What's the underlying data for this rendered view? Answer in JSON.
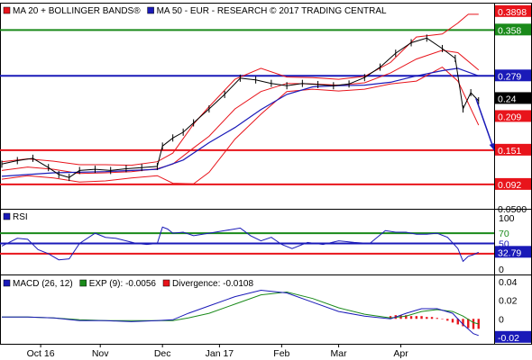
{
  "chart_data": [
    {
      "type": "line",
      "panel": "price",
      "legend": [
        {
          "label": "MA 20 + BOLLINGER BANDS®",
          "color": "#e8141b"
        },
        {
          "label": "MA 50 - EUR - RESEARCH © 2017 TRADING CENTRAL",
          "color": "#1a1ab8"
        }
      ],
      "ylim": [
        0.05,
        0.405
      ],
      "y_ticks": [
        "0.0500"
      ],
      "levels": [
        {
          "value": 0.358,
          "label": "0.358",
          "color": "#1a8a1a"
        },
        {
          "value": 0.279,
          "label": "0.279",
          "color": "#1a1ab8"
        },
        {
          "value": 0.151,
          "label": "0.151",
          "color": "#e8141b"
        },
        {
          "value": 0.092,
          "label": "0.092",
          "color": "#e8141b"
        }
      ],
      "price_tags": [
        {
          "value": 0.3898,
          "label": "0.3898",
          "color": "#e8141b"
        },
        {
          "value": 0.24,
          "label": "0.24",
          "color": "#000000"
        },
        {
          "value": 0.209,
          "label": "0.209",
          "color": "#e8141b"
        }
      ],
      "forecast_arrow": {
        "from": [
          183,
          0.24
        ],
        "to": [
          190,
          0.151
        ]
      },
      "price": {
        "name": "Price",
        "x": [
          0,
          6,
          12,
          18,
          22,
          26,
          30,
          36,
          42,
          48,
          54,
          60,
          62,
          66,
          70,
          74,
          80,
          86,
          92,
          98,
          104,
          110,
          116,
          122,
          128,
          134,
          140,
          146,
          152,
          158,
          164,
          170,
          175,
          178,
          181,
          184
        ],
        "y": [
          0.127,
          0.133,
          0.137,
          0.121,
          0.109,
          0.104,
          0.116,
          0.118,
          0.116,
          0.119,
          0.121,
          0.123,
          0.158,
          0.172,
          0.182,
          0.198,
          0.222,
          0.247,
          0.275,
          0.272,
          0.266,
          0.262,
          0.266,
          0.264,
          0.262,
          0.265,
          0.276,
          0.294,
          0.318,
          0.336,
          0.344,
          0.326,
          0.309,
          0.222,
          0.25,
          0.236
        ]
      },
      "ma20": {
        "name": "MA 20",
        "x": [
          0,
          10,
          20,
          30,
          40,
          50,
          60,
          66,
          74,
          80,
          90,
          100,
          110,
          120,
          130,
          140,
          150,
          160,
          170,
          176,
          184
        ],
        "y": [
          0.116,
          0.122,
          0.118,
          0.111,
          0.112,
          0.114,
          0.119,
          0.127,
          0.155,
          0.175,
          0.222,
          0.252,
          0.266,
          0.265,
          0.263,
          0.267,
          0.284,
          0.308,
          0.323,
          0.319,
          0.289
        ]
      },
      "bb_upper": {
        "name": "Upper band",
        "x": [
          0,
          10,
          20,
          30,
          40,
          50,
          60,
          66,
          74,
          80,
          90,
          100,
          110,
          120,
          130,
          140,
          150,
          160,
          170,
          176,
          180,
          184
        ],
        "y": [
          0.131,
          0.136,
          0.132,
          0.126,
          0.126,
          0.125,
          0.131,
          0.146,
          0.196,
          0.226,
          0.273,
          0.292,
          0.277,
          0.276,
          0.273,
          0.278,
          0.302,
          0.346,
          0.351,
          0.37,
          0.385,
          0.385
        ]
      },
      "bb_lower": {
        "name": "Lower band",
        "x": [
          0,
          10,
          20,
          30,
          40,
          50,
          60,
          66,
          74,
          80,
          90,
          100,
          110,
          120,
          130,
          140,
          150,
          160,
          170,
          176,
          184
        ],
        "y": [
          0.101,
          0.107,
          0.103,
          0.096,
          0.098,
          0.103,
          0.107,
          0.094,
          0.093,
          0.113,
          0.17,
          0.213,
          0.252,
          0.256,
          0.253,
          0.256,
          0.265,
          0.27,
          0.294,
          0.27,
          0.194
        ]
      },
      "ma50": {
        "name": "MA 50",
        "x": [
          0,
          20,
          40,
          60,
          70,
          80,
          90,
          100,
          110,
          120,
          130,
          140,
          150,
          160,
          170,
          176,
          184
        ],
        "y": [
          0.106,
          0.112,
          0.114,
          0.118,
          0.134,
          0.164,
          0.19,
          0.221,
          0.247,
          0.26,
          0.262,
          0.263,
          0.268,
          0.279,
          0.288,
          0.292,
          0.279
        ]
      }
    },
    {
      "type": "line",
      "panel": "rsi",
      "legend": [
        {
          "label": "RSI",
          "color": "#1a1ab8"
        }
      ],
      "ylim": [
        0,
        100
      ],
      "y_ticks": [
        "100",
        "70",
        "50",
        "30",
        "0"
      ],
      "levels": [
        {
          "value": 70,
          "label": "70",
          "color": "#1a8a1a"
        },
        {
          "value": 50,
          "label": "50",
          "color": "#1a1ab8"
        },
        {
          "value": 30,
          "label": "30",
          "color": "#e8141b"
        }
      ],
      "current": {
        "value": 32.79,
        "label": "32.79"
      },
      "series": [
        {
          "name": "RSI",
          "x": [
            0,
            6,
            10,
            14,
            18,
            22,
            26,
            30,
            36,
            40,
            44,
            48,
            52,
            56,
            60,
            62,
            64,
            66,
            70,
            74,
            80,
            86,
            92,
            96,
            100,
            104,
            108,
            112,
            118,
            124,
            130,
            136,
            142,
            148,
            152,
            156,
            160,
            164,
            168,
            172,
            176,
            178,
            180,
            182,
            184
          ],
          "y": [
            45,
            60,
            58,
            38,
            30,
            18,
            20,
            50,
            70,
            62,
            60,
            55,
            50,
            48,
            50,
            82,
            78,
            70,
            72,
            65,
            70,
            75,
            80,
            65,
            55,
            62,
            48,
            40,
            52,
            48,
            55,
            52,
            50,
            75,
            72,
            72,
            68,
            68,
            70,
            62,
            40,
            15,
            25,
            28,
            32.79
          ]
        }
      ]
    },
    {
      "type": "line",
      "panel": "macd",
      "legend": [
        {
          "label": "MACD (26, 12)",
          "color": "#1a1ab8"
        },
        {
          "label": "EXP (9): -0.0056",
          "color": "#1a8a1a"
        },
        {
          "label": "Divergence: -0.0108",
          "color": "#e8141b"
        }
      ],
      "ylim": [
        -0.027,
        0.048
      ],
      "y_ticks": [
        "0.04",
        "0.02",
        "0",
        "-0.02"
      ],
      "current": {
        "value": -0.02,
        "label": "-0.02"
      },
      "series": [
        {
          "name": "MACD",
          "x": [
            0,
            10,
            20,
            30,
            40,
            50,
            60,
            66,
            72,
            80,
            90,
            100,
            110,
            120,
            130,
            140,
            150,
            156,
            162,
            168,
            174,
            178,
            182,
            184
          ],
          "y": [
            0.002,
            0.002,
            0.001,
            -0.002,
            -0.002,
            -0.003,
            -0.002,
            -0.001,
            0.006,
            0.014,
            0.024,
            0.031,
            0.028,
            0.018,
            0.008,
            0.003,
            0.0,
            0.006,
            0.011,
            0.011,
            0.006,
            -0.006,
            -0.016,
            -0.018
          ]
        },
        {
          "name": "EXP (9)",
          "x": [
            0,
            10,
            20,
            30,
            40,
            50,
            60,
            66,
            72,
            80,
            90,
            100,
            110,
            120,
            130,
            140,
            150,
            156,
            162,
            168,
            174,
            178,
            182,
            184
          ],
          "y": [
            0.002,
            0.002,
            0.001,
            -0.001,
            -0.002,
            -0.002,
            -0.002,
            -0.002,
            0.001,
            0.006,
            0.016,
            0.026,
            0.029,
            0.022,
            0.012,
            0.005,
            0.001,
            0.003,
            0.008,
            0.01,
            0.008,
            0.003,
            -0.004,
            -0.0056
          ]
        },
        {
          "name": "Divergence",
          "x": [
            150,
            152,
            154,
            156,
            158,
            160,
            162,
            164,
            166,
            168,
            170,
            172,
            174,
            176,
            178,
            180,
            182,
            184
          ],
          "y": [
            0.003,
            0.004,
            0.004,
            0.004,
            0.003,
            0.003,
            0.003,
            0.002,
            0.002,
            0.001,
            0.0,
            -0.002,
            -0.004,
            -0.006,
            -0.008,
            -0.01,
            -0.011,
            -0.0108
          ]
        }
      ]
    }
  ],
  "x_axis": {
    "range": [
      0,
      190
    ],
    "ticks": [
      {
        "x": 15,
        "label": "Oct 16"
      },
      {
        "x": 38,
        "label": "Nov"
      },
      {
        "x": 62,
        "label": "Dec"
      },
      {
        "x": 84,
        "label": "Jan 17"
      },
      {
        "x": 108,
        "label": "Feb"
      },
      {
        "x": 130,
        "label": "Mar"
      },
      {
        "x": 154,
        "label": "Apr"
      }
    ]
  }
}
